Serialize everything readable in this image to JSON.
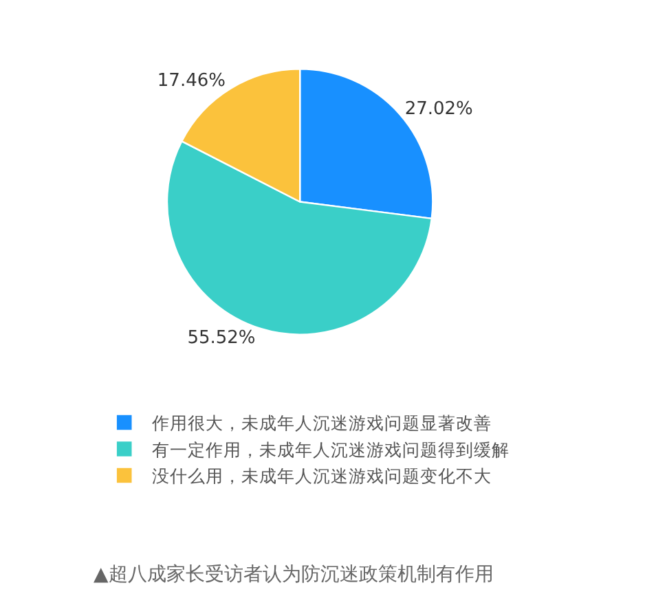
{
  "chart_data": {
    "type": "pie",
    "categories": [
      "作用很大，未成年人沉迷游戏问题显著改善",
      "有一定作用，未成年人沉迷游戏问题得到缓解",
      "没什么用，未成年人沉迷游戏问题变化不大"
    ],
    "values": [
      27.02,
      55.52,
      17.46
    ],
    "value_labels": [
      "27.02%",
      "55.52%",
      "17.46%"
    ],
    "colors": [
      "#1890ff",
      "#3acfc8",
      "#fbc23c"
    ],
    "legend": "bottom",
    "annotations": [
      "▲超八成家长受访者认为防沉迷政策机制有作用"
    ]
  }
}
